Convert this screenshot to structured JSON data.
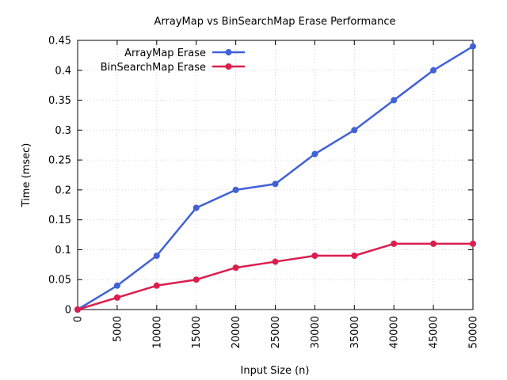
{
  "chart_data": {
    "type": "line",
    "title": "ArrayMap vs BinSearchMap Erase Performance",
    "xlabel": "Input Size (n)",
    "ylabel": "Time (msec)",
    "x": [
      0,
      5000,
      10000,
      15000,
      20000,
      25000,
      30000,
      35000,
      40000,
      45000,
      50000
    ],
    "xlim": [
      0,
      50000
    ],
    "ylim": [
      0,
      0.45
    ],
    "xticks": [
      "0",
      "5000",
      "10000",
      "15000",
      "20000",
      "25000",
      "30000",
      "35000",
      "40000",
      "45000",
      "50000"
    ],
    "yticks": [
      "0",
      "0.05",
      "0.1",
      "0.15",
      "0.2",
      "0.25",
      "0.3",
      "0.35",
      "0.4",
      "0.45"
    ],
    "grid": true,
    "legend_position": "top-left",
    "series": [
      {
        "name": "ArrayMap Erase",
        "color": "#4161d6",
        "values": [
          0.0,
          0.04,
          0.09,
          0.17,
          0.2,
          0.21,
          0.26,
          0.3,
          0.35,
          0.4,
          0.44
        ]
      },
      {
        "name": "BinSearchMap Erase",
        "color": "#dc1e4e",
        "values": [
          0.0,
          0.02,
          0.04,
          0.05,
          0.07,
          0.08,
          0.09,
          0.09,
          0.11,
          0.11,
          0.11
        ]
      }
    ]
  }
}
